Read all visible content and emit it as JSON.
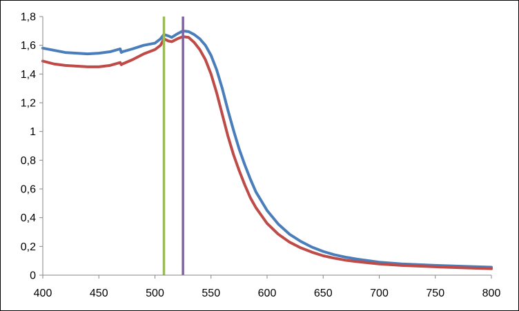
{
  "chart_data": {
    "type": "line",
    "title": "",
    "xlabel": "",
    "ylabel": "",
    "xlim": [
      400,
      800
    ],
    "ylim": [
      0,
      1.8
    ],
    "grid": false,
    "legend": "none",
    "x_ticks": [
      400,
      450,
      500,
      550,
      600,
      650,
      700,
      750,
      800
    ],
    "x_tick_labels": [
      "400",
      "450",
      "500",
      "550",
      "600",
      "650",
      "700",
      "750",
      "800"
    ],
    "y_ticks": [
      0,
      0.2,
      0.4,
      0.6,
      0.8,
      1,
      1.2,
      1.4,
      1.6,
      1.8
    ],
    "y_tick_labels": [
      "0",
      "0,2",
      "0,4",
      "0,6",
      "0,8",
      "1",
      "1,2",
      "1,4",
      "1,6",
      "1,8"
    ],
    "series": [
      {
        "color": "#4a7ebb",
        "x": [
          400,
          410,
          420,
          430,
          440,
          450,
          460,
          469,
          470,
          471,
          480,
          490,
          500,
          505,
          508,
          512,
          515,
          520,
          525,
          530,
          535,
          540,
          545,
          550,
          555,
          560,
          565,
          570,
          575,
          580,
          585,
          590,
          600,
          610,
          620,
          630,
          640,
          650,
          660,
          670,
          680,
          700,
          720,
          750,
          780,
          800
        ],
        "y": [
          1.58,
          1.565,
          1.55,
          1.545,
          1.54,
          1.545,
          1.555,
          1.575,
          1.55,
          1.555,
          1.575,
          1.6,
          1.615,
          1.645,
          1.675,
          1.665,
          1.655,
          1.68,
          1.7,
          1.695,
          1.675,
          1.645,
          1.6,
          1.53,
          1.43,
          1.3,
          1.15,
          1.01,
          0.88,
          0.77,
          0.67,
          0.58,
          0.45,
          0.355,
          0.285,
          0.235,
          0.195,
          0.165,
          0.142,
          0.125,
          0.112,
          0.09,
          0.078,
          0.068,
          0.06,
          0.055
        ]
      },
      {
        "color": "#be4b48",
        "x": [
          400,
          410,
          420,
          430,
          440,
          450,
          460,
          469,
          470,
          471,
          480,
          490,
          500,
          505,
          508,
          512,
          515,
          520,
          525,
          530,
          535,
          540,
          545,
          550,
          555,
          560,
          565,
          570,
          575,
          580,
          585,
          590,
          600,
          610,
          620,
          630,
          640,
          650,
          660,
          670,
          680,
          700,
          720,
          750,
          780,
          800
        ],
        "y": [
          1.49,
          1.47,
          1.46,
          1.455,
          1.45,
          1.45,
          1.46,
          1.48,
          1.465,
          1.47,
          1.5,
          1.54,
          1.57,
          1.6,
          1.645,
          1.63,
          1.625,
          1.645,
          1.66,
          1.655,
          1.62,
          1.57,
          1.5,
          1.4,
          1.27,
          1.12,
          0.97,
          0.84,
          0.73,
          0.63,
          0.54,
          0.47,
          0.36,
          0.285,
          0.23,
          0.19,
          0.16,
          0.135,
          0.118,
          0.104,
          0.094,
          0.078,
          0.068,
          0.058,
          0.05,
          0.045
        ]
      }
    ],
    "vertical_lines": [
      {
        "x": 508,
        "color": "#9bbb59"
      },
      {
        "x": 525,
        "color": "#8064a2"
      }
    ]
  }
}
